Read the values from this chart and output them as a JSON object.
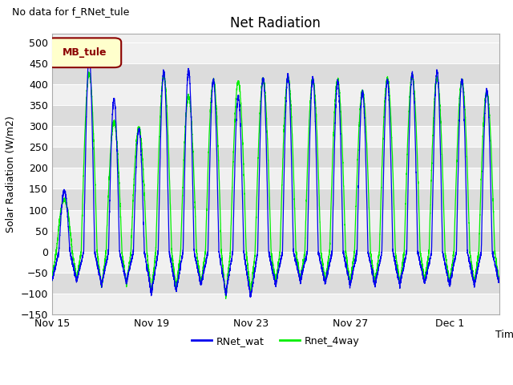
{
  "title": "Net Radiation",
  "top_left_text": "No data for f_RNet_tule",
  "ylabel": "Solar Radiation (W/m2)",
  "xlabel": "Time",
  "ylim": [
    -150,
    520
  ],
  "yticks": [
    -150,
    -100,
    -50,
    0,
    50,
    100,
    150,
    200,
    250,
    300,
    350,
    400,
    450,
    500
  ],
  "xtick_labels": [
    "Nov 15",
    "Nov 19",
    "Nov 23",
    "Nov 27",
    "Dec 1"
  ],
  "xtick_positions": [
    0,
    4,
    8,
    12,
    16
  ],
  "xlim": [
    0,
    18
  ],
  "legend_box_label": "MB_tule",
  "legend_box_bg": "#FFFFCC",
  "legend_box_edge": "#8B0000",
  "line1_color": "#0000EE",
  "line1_label": "RNet_wat",
  "line2_color": "#00EE00",
  "line2_label": "Rnet_4way",
  "plot_bg_light": "#F0F0F0",
  "plot_bg_dark": "#DCDCDC",
  "title_fontsize": 12,
  "label_fontsize": 9,
  "tick_fontsize": 9,
  "num_days": 18,
  "ppd": 288,
  "day_peaks_blue": [
    145,
    465,
    365,
    290,
    430,
    435,
    410,
    370,
    415,
    420,
    415,
    405,
    380,
    410,
    425,
    430,
    410,
    385
  ],
  "day_peaks_green": [
    125,
    425,
    310,
    295,
    420,
    370,
    408,
    405,
    410,
    415,
    410,
    408,
    383,
    412,
    420,
    415,
    408,
    380
  ],
  "night_min_blue": [
    -70,
    -80,
    -75,
    -100,
    -95,
    -80,
    -100,
    -110,
    -80,
    -70,
    -75,
    -80,
    -80,
    -80,
    -75,
    -80,
    -80,
    -75
  ],
  "night_min_green": [
    -65,
    -85,
    -80,
    -100,
    -90,
    -75,
    -110,
    -100,
    -75,
    -65,
    -70,
    -75,
    -75,
    -75,
    -70,
    -75,
    -75,
    -70
  ]
}
